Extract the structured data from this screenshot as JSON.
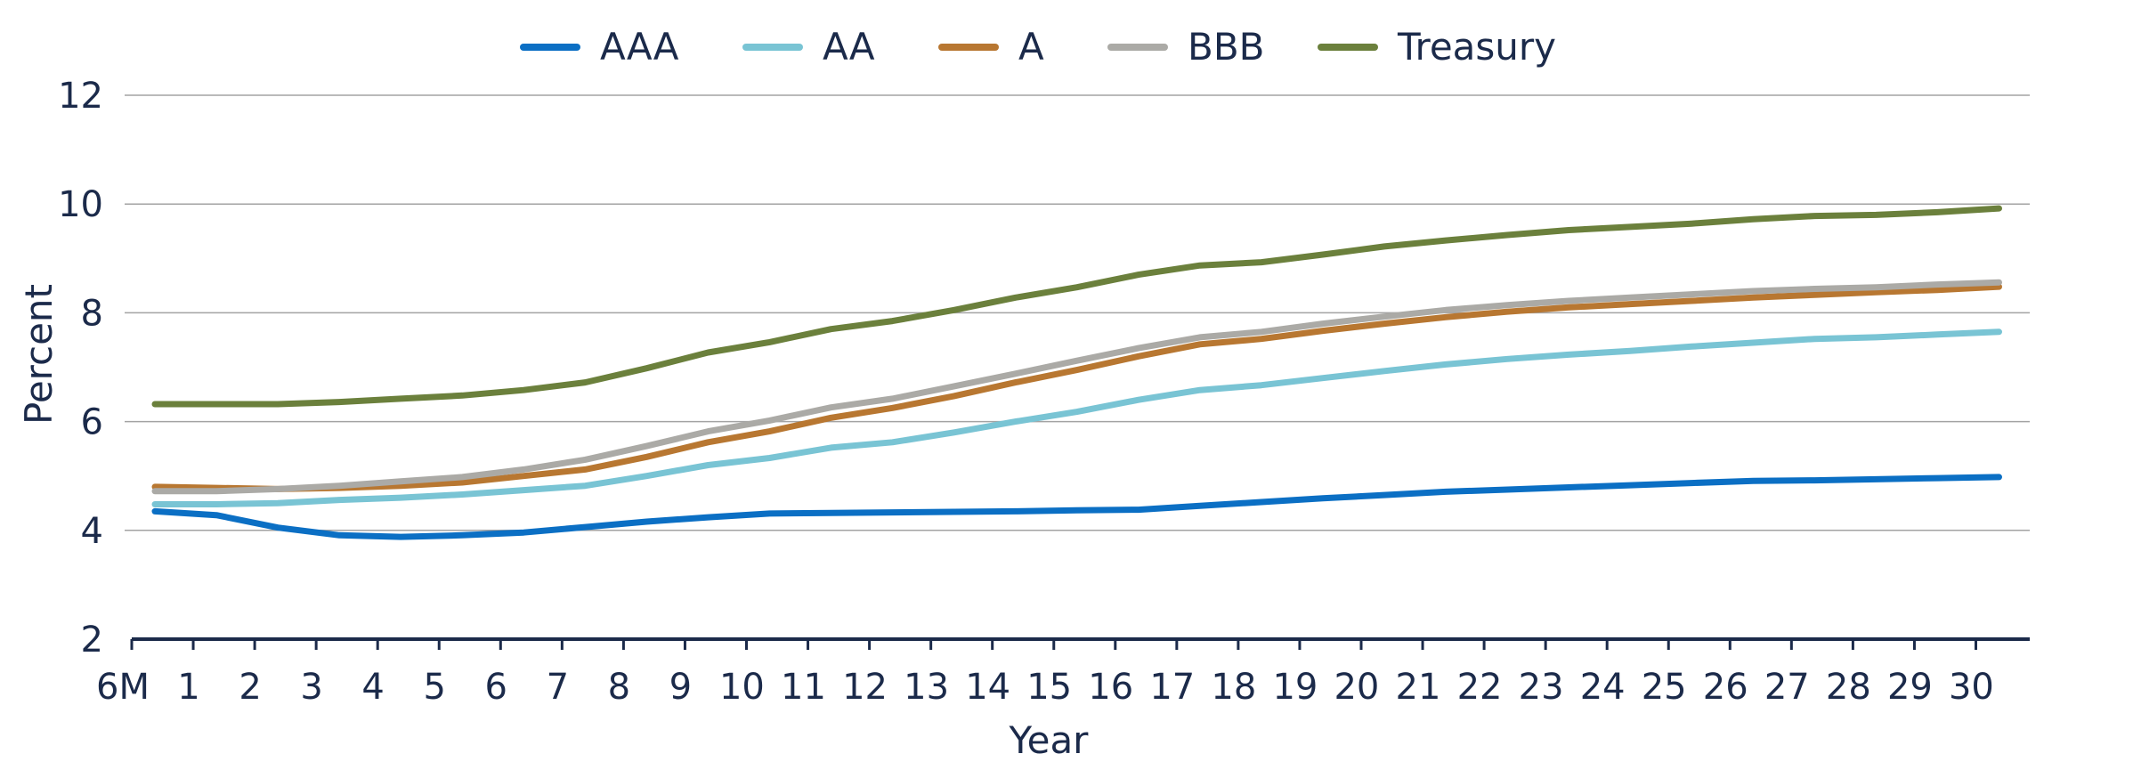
{
  "chart_data": {
    "type": "line",
    "title": "",
    "xlabel": "Year",
    "ylabel": "Percent",
    "ylim": [
      2,
      12
    ],
    "yticks": [
      "2",
      "4",
      "6",
      "8",
      "10",
      "12"
    ],
    "grid": true,
    "legend_position": "top-center",
    "categories": [
      "6M",
      "1",
      "2",
      "3",
      "4",
      "5",
      "6",
      "7",
      "8",
      "9",
      "10",
      "11",
      "12",
      "13",
      "14",
      "15",
      "16",
      "17",
      "18",
      "19",
      "20",
      "21",
      "22",
      "23",
      "24",
      "25",
      "26",
      "27",
      "28",
      "29",
      "30"
    ],
    "series": [
      {
        "name": "AAA",
        "color": "#0b6fc4",
        "values": [
          4.35,
          4.28,
          4.05,
          3.91,
          3.88,
          3.91,
          3.96,
          4.06,
          4.16,
          4.24,
          4.31,
          4.32,
          4.33,
          4.34,
          4.35,
          4.37,
          4.38,
          4.45,
          4.52,
          4.59,
          4.65,
          4.71,
          4.75,
          4.79,
          4.83,
          4.87,
          4.91,
          4.92,
          4.94,
          4.96,
          4.98
        ]
      },
      {
        "name": "AA",
        "color": "#79c4d4",
        "values": [
          4.48,
          4.48,
          4.5,
          4.56,
          4.6,
          4.66,
          4.74,
          4.82,
          5.0,
          5.2,
          5.33,
          5.52,
          5.62,
          5.8,
          6.0,
          6.18,
          6.4,
          6.58,
          6.67,
          6.8,
          6.93,
          7.05,
          7.15,
          7.23,
          7.3,
          7.38,
          7.45,
          7.52,
          7.55,
          7.6,
          7.65
        ]
      },
      {
        "name": "A",
        "color": "#b87731",
        "values": [
          4.8,
          4.78,
          4.76,
          4.78,
          4.82,
          4.88,
          5.0,
          5.12,
          5.35,
          5.62,
          5.82,
          6.07,
          6.25,
          6.47,
          6.72,
          6.95,
          7.2,
          7.42,
          7.52,
          7.67,
          7.8,
          7.92,
          8.02,
          8.1,
          8.16,
          8.22,
          8.28,
          8.33,
          8.38,
          8.42,
          8.48
        ]
      },
      {
        "name": "BBB",
        "color": "#abaaa6",
        "values": [
          4.72,
          4.72,
          4.76,
          4.82,
          4.9,
          4.98,
          5.12,
          5.3,
          5.55,
          5.82,
          6.02,
          6.26,
          6.42,
          6.65,
          6.88,
          7.12,
          7.35,
          7.55,
          7.65,
          7.8,
          7.93,
          8.05,
          8.14,
          8.22,
          8.28,
          8.34,
          8.4,
          8.44,
          8.47,
          8.52,
          8.56
        ]
      },
      {
        "name": "Treasury",
        "color": "#6b803c",
        "values": [
          6.32,
          6.32,
          6.32,
          6.36,
          6.42,
          6.48,
          6.58,
          6.72,
          6.98,
          7.27,
          7.46,
          7.7,
          7.85,
          8.05,
          8.28,
          8.47,
          8.7,
          8.87,
          8.93,
          9.07,
          9.22,
          9.33,
          9.43,
          9.52,
          9.58,
          9.64,
          9.72,
          9.78,
          9.8,
          9.85,
          9.92
        ]
      }
    ]
  }
}
